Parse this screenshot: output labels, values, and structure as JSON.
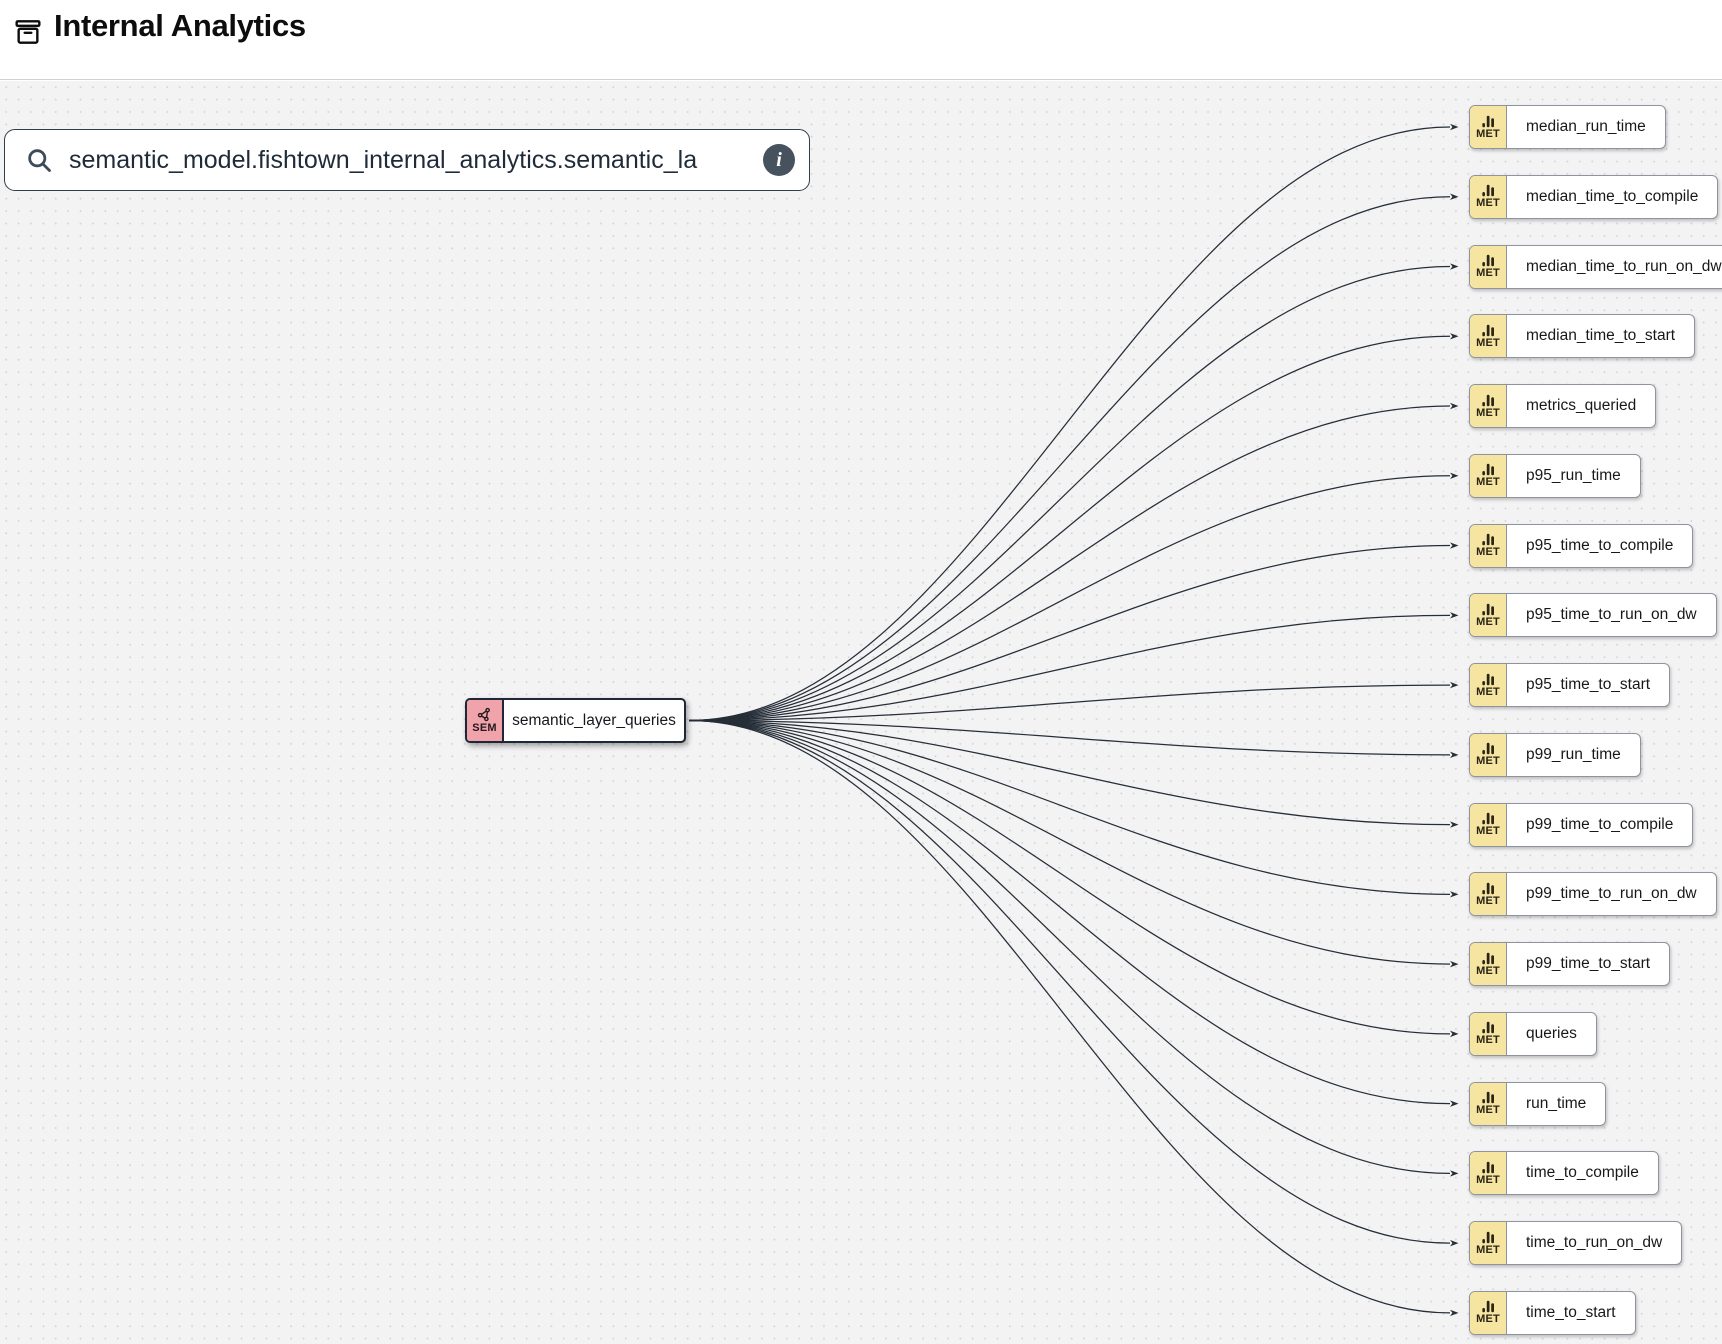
{
  "header": {
    "title": "Internal Analytics"
  },
  "search": {
    "value": "semantic_model.fishtown_internal_analytics.semantic_la",
    "info_button": "i"
  },
  "graph": {
    "source_node": {
      "type_badge": "SEM",
      "label": "semantic_layer_queries"
    },
    "metric_type_badge": "MET",
    "metric_nodes": [
      {
        "label": "median_run_time"
      },
      {
        "label": "median_time_to_compile"
      },
      {
        "label": "median_time_to_run_on_dw"
      },
      {
        "label": "median_time_to_start"
      },
      {
        "label": "metrics_queried"
      },
      {
        "label": "p95_run_time"
      },
      {
        "label": "p95_time_to_compile"
      },
      {
        "label": "p95_time_to_run_on_dw"
      },
      {
        "label": "p95_time_to_start"
      },
      {
        "label": "p99_run_time"
      },
      {
        "label": "p99_time_to_compile"
      },
      {
        "label": "p99_time_to_run_on_dw"
      },
      {
        "label": "p99_time_to_start"
      },
      {
        "label": "queries"
      },
      {
        "label": "run_time"
      },
      {
        "label": "time_to_compile"
      },
      {
        "label": "time_to_run_on_dw"
      },
      {
        "label": "time_to_start"
      }
    ]
  },
  "colors": {
    "sem_badge": "#f1a3ac",
    "met_badge": "#f6e5a0",
    "edge": "#262e38",
    "canvas_bg": "#f3f3f4",
    "info_button_bg": "#47525f"
  }
}
